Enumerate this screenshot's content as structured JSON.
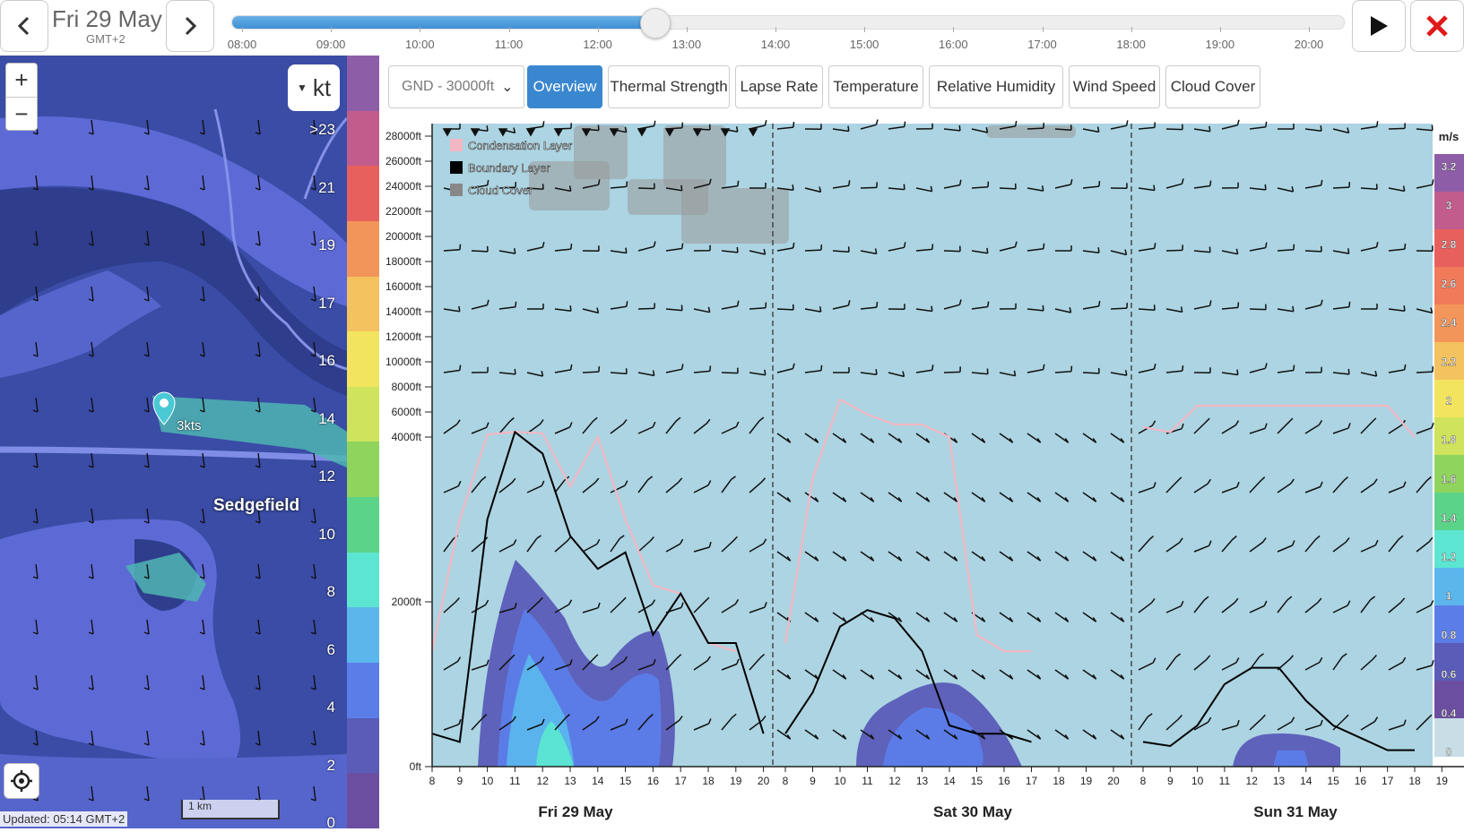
{
  "header": {
    "date": "Fri 29 May",
    "timezone": "GMT+2",
    "time_ticks": [
      "08:00",
      "09:00",
      "10:00",
      "11:00",
      "12:00",
      "13:00",
      "14:00",
      "15:00",
      "16:00",
      "17:00",
      "18:00",
      "19:00",
      "20:00"
    ],
    "timeline_progress": 0.38
  },
  "map": {
    "unit": "kt",
    "zoom_in": "+",
    "zoom_out": "−",
    "place_name": "Sedgefield",
    "pin_label": "3kts",
    "scale_labels": [
      ">23",
      "21",
      "19",
      "17",
      "16",
      "14",
      "12",
      "10",
      "8",
      "6",
      "4",
      "2",
      "0"
    ],
    "scale_colors": [
      "#8e5da8",
      "#c15c8c",
      "#e8605e",
      "#f2955a",
      "#f4c25e",
      "#f2e45e",
      "#cfe35c",
      "#8fd45d",
      "#5bd48a",
      "#5ce6d2",
      "#5bb6ec",
      "#5b7de8",
      "#5a5cb8",
      "#6b4ea0"
    ],
    "scalebar": "1 km",
    "updated": "Updated: 05:14 GMT+2"
  },
  "toolbar": {
    "altitude_select": "GND - 30000ft",
    "tabs": [
      "Overview",
      "Thermal Strength",
      "Lapse Rate",
      "Temperature",
      "Relative Humidity",
      "Wind Speed",
      "Cloud Cover"
    ],
    "active_tab": "Overview"
  },
  "chart_data": {
    "type": "area",
    "legend": [
      "Condensation Layer",
      "Boundary Layer",
      "Cloud Cover"
    ],
    "legend_colors": [
      "#f4b7c4",
      "#000000",
      "#888888"
    ],
    "y_axis_labels": [
      "28000ft",
      "26000ft",
      "24000ft",
      "22000ft",
      "20000ft",
      "18000ft",
      "16000ft",
      "14000ft",
      "12000ft",
      "10000ft",
      "8000ft",
      "6000ft",
      "4000ft",
      "2000ft",
      "0ft"
    ],
    "x_hours": [
      8,
      9,
      10,
      11,
      12,
      13,
      14,
      15,
      16,
      17,
      18,
      19,
      20
    ],
    "days": [
      "Fri 29 May",
      "Sat 30 May",
      "Sun 31 May"
    ],
    "colorbar_unit": "m/s",
    "colorbar_labels": [
      "3.2",
      "3",
      "2.8",
      "2.6",
      "2.4",
      "2.2",
      "2",
      "1.8",
      "1.6",
      "1.4",
      "1.2",
      "1",
      "0.8",
      "0.6",
      "0.4",
      "0"
    ],
    "colorbar_colors": [
      "#8e5da8",
      "#c15c8c",
      "#e8605e",
      "#f07a5a",
      "#f2955a",
      "#f4c25e",
      "#f2e45e",
      "#cfe35c",
      "#8fd45d",
      "#5bd48a",
      "#5ce6d2",
      "#5bb6ec",
      "#5b7de8",
      "#5a5cb8",
      "#6b4ea0",
      "#c8dde6"
    ],
    "boundary_layer_ft": [
      [
        400,
        300,
        3000,
        4400,
        3800,
        2800,
        2400,
        2600,
        1600,
        2100,
        1500,
        1500,
        400
      ],
      [
        400,
        900,
        1700,
        1900,
        1800,
        1400,
        500,
        400,
        400,
        300
      ],
      [
        300,
        250,
        500,
        1000,
        1200,
        1200,
        800,
        500,
        350,
        200,
        200
      ]
    ],
    "condensation_layer_ft": [
      [
        1400,
        3000,
        4200,
        4400,
        4300,
        3400,
        4000,
        3000,
        2200,
        2100,
        1500,
        1400
      ],
      [
        1500,
        3500,
        7000,
        5800,
        5000,
        5000,
        4000,
        1600,
        1400,
        1400
      ],
      [
        4800,
        4400,
        6500,
        6500,
        6500,
        6500,
        6500,
        6500,
        6500,
        6500,
        4000
      ]
    ]
  }
}
